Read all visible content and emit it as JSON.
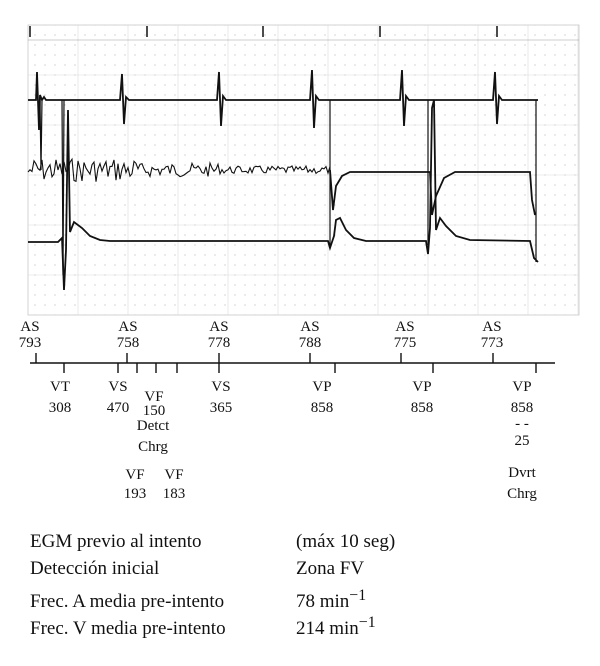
{
  "figure": {
    "atrial_markers": [
      {
        "label": "AS",
        "value": "793"
      },
      {
        "label": "AS",
        "value": "758"
      },
      {
        "label": "AS",
        "value": "778"
      },
      {
        "label": "AS",
        "value": "788"
      },
      {
        "label": "AS",
        "value": "775"
      },
      {
        "label": "AS",
        "value": "773"
      }
    ],
    "ventricular_markers": [
      {
        "label": "VT",
        "value": "308"
      },
      {
        "label": "VS",
        "value": "470"
      },
      {
        "label": "VF",
        "value": "150"
      },
      {
        "label": "VS",
        "value": "365"
      },
      {
        "label": "VP",
        "value": "858"
      },
      {
        "label": "VP",
        "value": "858"
      },
      {
        "label": "VP",
        "value": "858"
      }
    ],
    "annotations": {
      "detct": "Detct",
      "chrg": "Chrg",
      "vf1_label": "VF",
      "vf1_value": "193",
      "vf2_label": "VF",
      "vf2_value": "183",
      "dash": "- -",
      "dvrt_value": "25",
      "dvrt": "Dvrt",
      "dvrt_chrg": "Chrg"
    }
  },
  "summary": [
    {
      "key": "EGM previo al intento",
      "value": "(máx 10 seg)"
    },
    {
      "key": "Detección inicial",
      "value": "Zona FV"
    },
    {
      "key": "Frec. A media pre-intento",
      "value": "78 min",
      "sup": "−1"
    },
    {
      "key": "Frec. V media pre-intento",
      "value": "214 min",
      "sup": "−1"
    }
  ]
}
